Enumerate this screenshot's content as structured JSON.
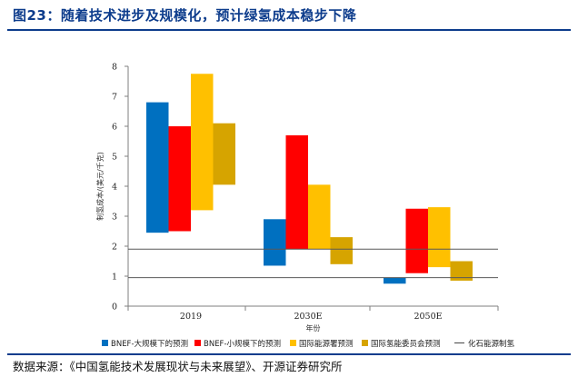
{
  "figure": {
    "title": "图23：随着技术进步及规模化，预计绿氢成本稳步下降",
    "source": "数据来源：《中国氢能技术发展现状与未来展望》、开源证券研究所"
  },
  "colors": {
    "brand": "#0d3c8c",
    "bnef_large": "#0070c0",
    "bnef_small": "#ff0000",
    "energy_bureau": "#ffc000",
    "hydrogen_council": "#d6a400",
    "fossil_line": "#595959"
  },
  "chart_data": {
    "type": "bar",
    "subtype": "floating-range",
    "xlabel": "年份",
    "ylabel": "制氢成本/(美元/千克)",
    "ylim": [
      0,
      8
    ],
    "yticks": [
      0,
      1,
      2,
      3,
      4,
      5,
      6,
      7,
      8
    ],
    "categories": [
      "2019",
      "2030E",
      "2050E"
    ],
    "grid": false,
    "legend_position": "bottom",
    "series": [
      {
        "name": "BNEF-大规模下的预测",
        "color": "#0070c0",
        "ranges": [
          [
            2.45,
            6.8
          ],
          [
            1.35,
            2.9
          ],
          [
            0.75,
            0.95
          ]
        ]
      },
      {
        "name": "BNEF-小规模下的预测",
        "color": "#ff0000",
        "ranges": [
          [
            2.5,
            6.0
          ],
          [
            1.9,
            5.7
          ],
          [
            1.1,
            3.25
          ]
        ]
      },
      {
        "name": "国际能源署预测",
        "color": "#ffc000",
        "ranges": [
          [
            3.2,
            7.75
          ],
          [
            1.9,
            4.05
          ],
          [
            1.3,
            3.3
          ]
        ]
      },
      {
        "name": "国际氢能委员会预测",
        "color": "#d6a400",
        "ranges": [
          [
            4.05,
            6.1
          ],
          [
            1.4,
            2.3
          ],
          [
            0.85,
            1.5
          ]
        ]
      }
    ],
    "reference_lines": [
      {
        "name": "化石能源制氢",
        "color": "#595959",
        "values": [
          0.95,
          1.9
        ]
      }
    ]
  }
}
